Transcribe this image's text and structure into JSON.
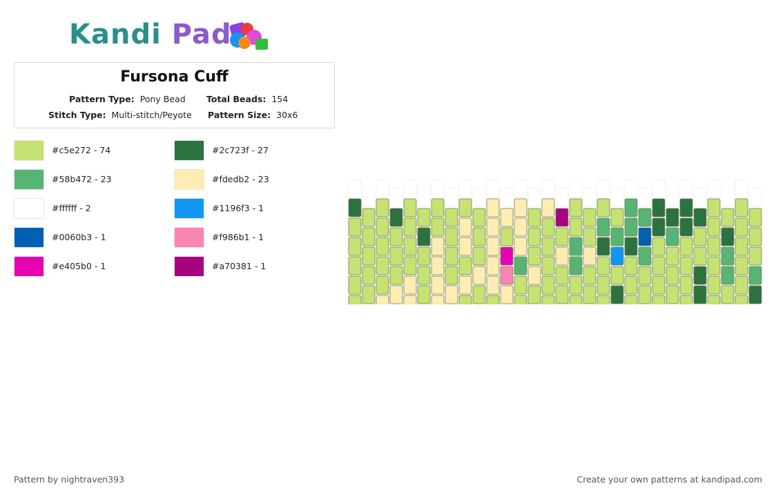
{
  "logo": {
    "part1": "Kandi",
    "part2": "Pad",
    "bead_colors": [
      "#8e3fe0",
      "#1196f3",
      "#f03a3a",
      "#2fbf3a",
      "#f28b1e",
      "#e04ad8"
    ]
  },
  "pattern": {
    "title": "Fursona Cuff",
    "type_label": "Pattern Type:",
    "type_value": "Pony Bead",
    "total_label": "Total Beads:",
    "total_value": "154",
    "stitch_label": "Stitch Type:",
    "stitch_value": "Multi-stitch/Peyote",
    "size_label": "Pattern Size:",
    "size_value": "30x6"
  },
  "legend": [
    {
      "color": "#c5e272",
      "label": "#c5e272 - 74"
    },
    {
      "color": "#2c723f",
      "label": "#2c723f - 27"
    },
    {
      "color": "#58b472",
      "label": "#58b472 - 23"
    },
    {
      "color": "#fdedb2",
      "label": "#fdedb2 - 23"
    },
    {
      "color": "#ffffff",
      "label": "#ffffff - 2"
    },
    {
      "color": "#1196f3",
      "label": "#1196f3 - 1"
    },
    {
      "color": "#0060b3",
      "label": "#0060b3 - 1"
    },
    {
      "color": "#f986b1",
      "label": "#f986b1 - 1"
    },
    {
      "color": "#e405b0",
      "label": "#e405b0 - 1"
    },
    {
      "color": "#a70381",
      "label": "#a70381 - 1"
    }
  ],
  "grid": {
    "columns": 30,
    "palette": {
      "L": "#c5e272",
      "D": "#2c723f",
      "M": "#58b472",
      "C": "#fdedb2",
      "W": "#ffffff",
      "B": "#1196f3",
      "N": "#0060b3",
      "P": "#f986b1",
      "G": "#e405b0",
      "V": "#a70381"
    },
    "rows_top": [
      "DLLLLCCCLLMDDLLLLD",
      "LLLLLCCCLLMMDDLLLL",
      "LLLLLCCCCLMDDLLLLD",
      "LLLLLLCLCMLMLLLLLL",
      "LLLLLLCCCCLLLLLLLL",
      "LLLLLLCCCLLLLLLLLL"
    ],
    "rows_bottom": [
      "LDLLLCLVLLMDDLLLLL",
      "MLLDLLLLLLMNMLDLLL",
      "LMLLLLLGLCCBMLLMLL",
      "MDLLLLLCPCLLLLLDMM",
      "DLDLLCLCLCLLLDLLDL",
      "MLLLLCLCLLLLLLMMMD"
    ]
  },
  "footer": {
    "left": "Pattern by nightraven393",
    "right": "Create your own patterns at kandipad.com"
  }
}
